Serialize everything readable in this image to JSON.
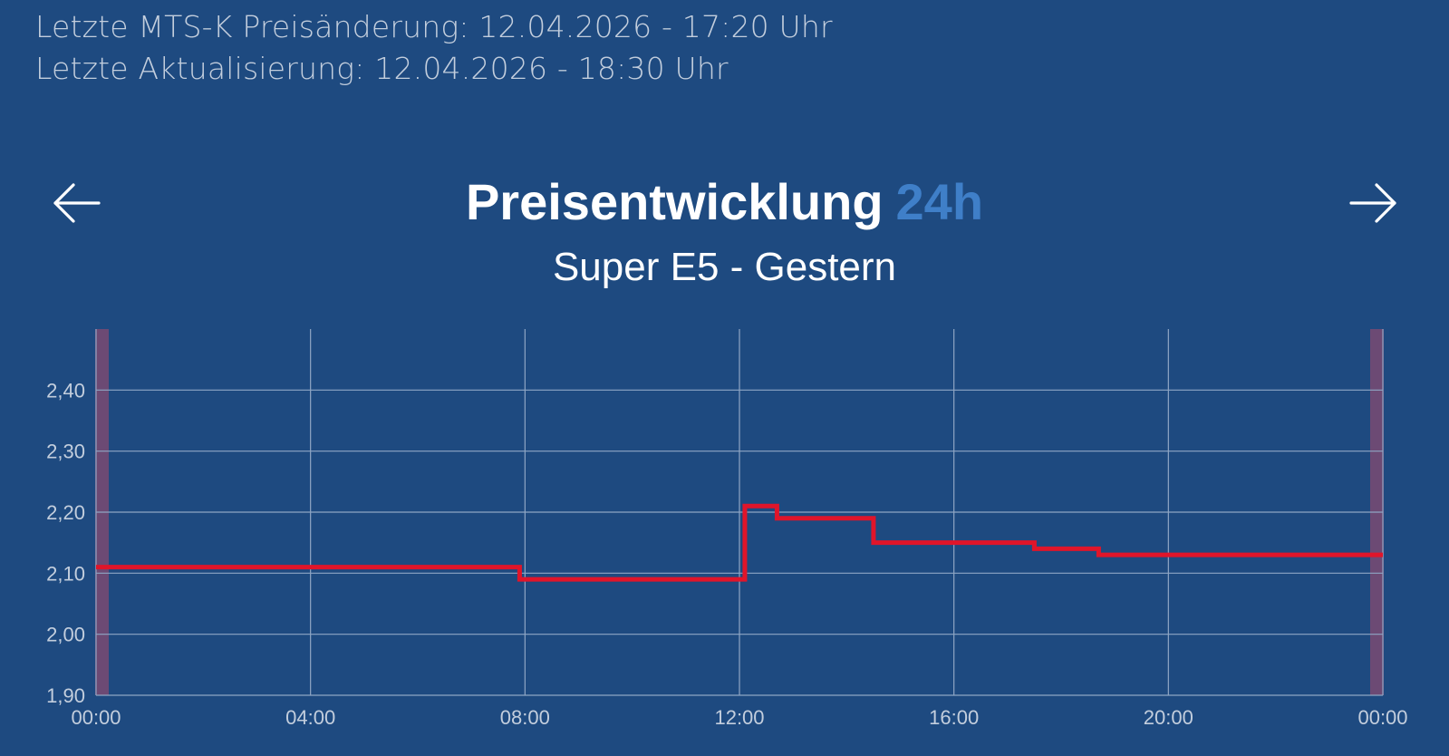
{
  "header": {
    "last_price_change": "Letzte MTS-K Preisänderung: 12.04.2026 - 17:20 Uhr",
    "last_update": "Letzte Aktualisierung: 12.04.2026 - 18:30 Uhr"
  },
  "nav": {
    "prev_icon": "arrow-left-icon",
    "next_icon": "arrow-right-icon"
  },
  "colors": {
    "background": "#1e4a80",
    "accent": "#3f7fc8",
    "series": "#e0152a",
    "grid": "#8fa6c4",
    "edge_band": "#7a4a72"
  },
  "chart_data": {
    "type": "line",
    "step": true,
    "title": "Preisentwicklung",
    "title_period": "24h",
    "subtitle": "Super E5 - Gestern",
    "xlabel": "",
    "ylabel": "",
    "x_ticks": [
      "00:00",
      "04:00",
      "08:00",
      "12:00",
      "16:00",
      "20:00",
      "00:00"
    ],
    "x_range_hours": [
      0,
      24
    ],
    "y_ticks": [
      "1,90",
      "2,00",
      "2,10",
      "2,20",
      "2,30",
      "2,40"
    ],
    "y_tick_values": [
      1.9,
      2.0,
      2.1,
      2.2,
      2.3,
      2.4
    ],
    "ylim": [
      1.9,
      2.5
    ],
    "grid": true,
    "legend": "none",
    "series": [
      {
        "x_hours": [
          0,
          7.9,
          12.1,
          12.7,
          14.5,
          17.5,
          18.7,
          24
        ],
        "values": [
          2.11,
          2.09,
          2.21,
          2.19,
          2.15,
          2.14,
          2.13,
          2.13
        ]
      }
    ]
  }
}
